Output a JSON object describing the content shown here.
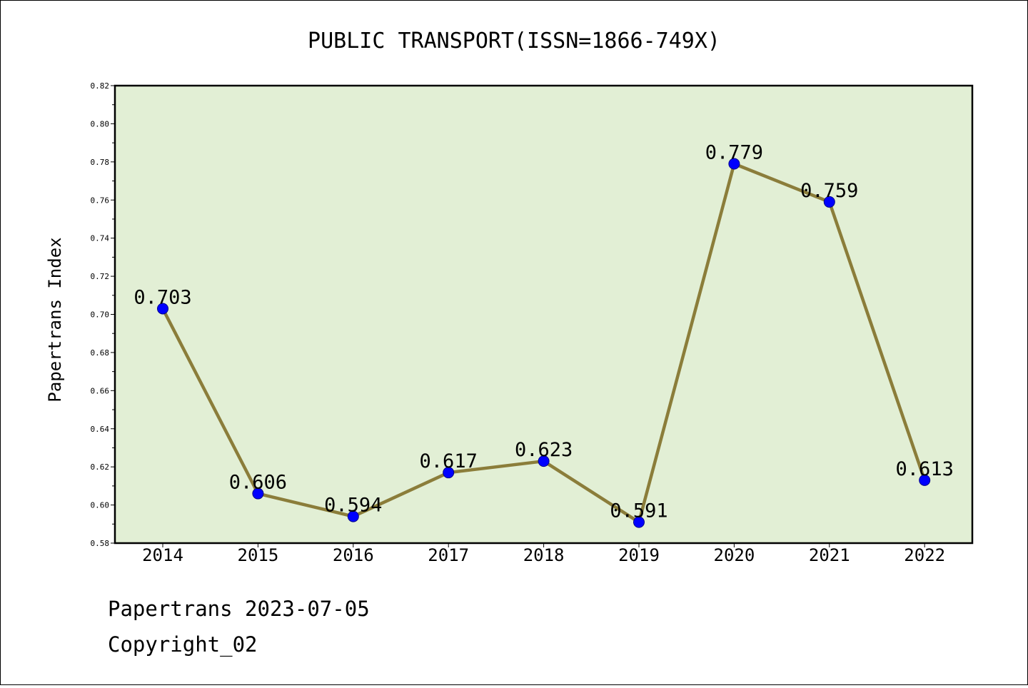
{
  "chart_data": {
    "type": "line",
    "title": "PUBLIC TRANSPORT(ISSN=1866-749X)",
    "xlabel": "",
    "ylabel": "Papertrans Index",
    "categories": [
      "2014",
      "2015",
      "2016",
      "2017",
      "2018",
      "2019",
      "2020",
      "2021",
      "2022"
    ],
    "values": [
      0.703,
      0.606,
      0.594,
      0.617,
      0.623,
      0.591,
      0.779,
      0.759,
      0.613
    ],
    "data_labels": [
      "0.703",
      "0.606",
      "0.594",
      "0.617",
      "0.623",
      "0.591",
      "0.779",
      "0.759",
      "0.613"
    ],
    "ylim": [
      0.58,
      0.82
    ],
    "yticks": [
      "0.58",
      "0.60",
      "0.62",
      "0.64",
      "0.66",
      "0.68",
      "0.70",
      "0.72",
      "0.74",
      "0.76",
      "0.78",
      "0.80",
      "0.82"
    ],
    "grid": false,
    "legend": "none",
    "colors": {
      "plot_background": "#e2efd5",
      "line": "#8b7d3a",
      "marker": "#0000ff"
    }
  },
  "footer": {
    "line1": "Papertrans 2023-07-05",
    "line2": "Copyright_02"
  }
}
